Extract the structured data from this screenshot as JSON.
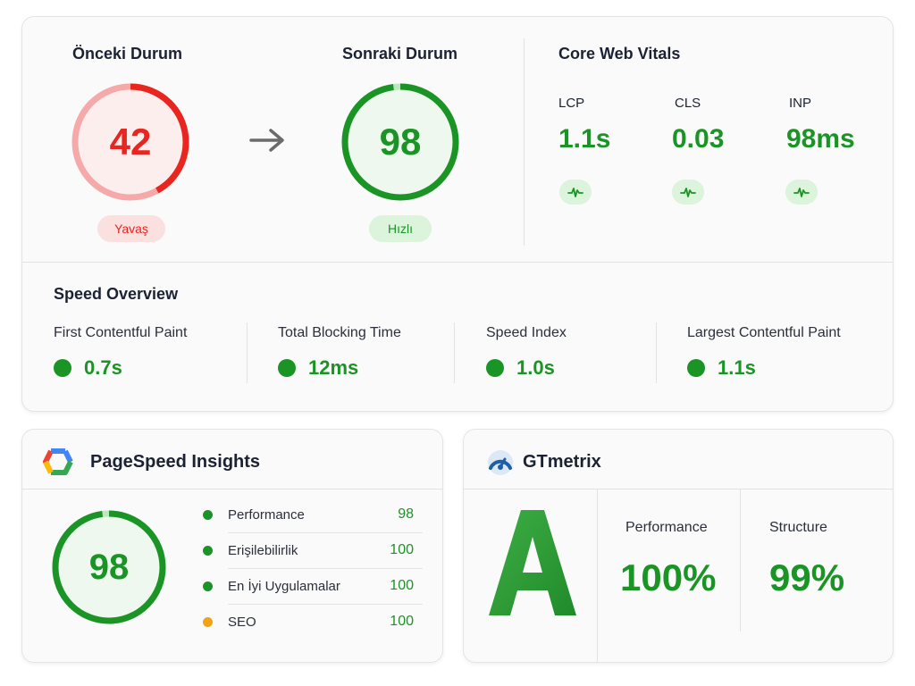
{
  "comparison": {
    "before": {
      "title": "Önceki Durum",
      "score": "42",
      "score_fraction": 0.42,
      "status": "Yavaş",
      "color": "#e8251f",
      "track_color": "#f5a9a9",
      "fill_color": "#fdeeee",
      "pill_bg": "#fbe0e0"
    },
    "after": {
      "title": "Sonraki Durum",
      "score": "98",
      "score_fraction": 0.98,
      "status": "Hızlı",
      "color": "#1a9424",
      "fill_color": "#eef8ee",
      "pill_bg": "#dcf3dc"
    },
    "arrow_icon": "arrow-right-icon"
  },
  "core_web_vitals": {
    "title": "Core Web Vitals",
    "metrics": [
      {
        "label": "LCP",
        "value": "1.1s",
        "icon": "pulse-icon"
      },
      {
        "label": "CLS",
        "value": "0.03",
        "icon": "pulse-icon"
      },
      {
        "label": "INP",
        "value": "98ms",
        "icon": "pulse-icon"
      }
    ]
  },
  "speed_overview": {
    "title": "Speed Overview",
    "metrics": [
      {
        "label": "First Contentful Paint",
        "value": "0.7s"
      },
      {
        "label": "Total Blocking Time",
        "value": "12ms"
      },
      {
        "label": "Speed Index",
        "value": "1.0s"
      },
      {
        "label": "Largest Contentful Paint",
        "value": "1.1s"
      }
    ]
  },
  "pagespeed": {
    "title": "PageSpeed Insights",
    "logo_icon": "pagespeed-logo-icon",
    "score": "98",
    "score_fraction": 0.98,
    "rows": [
      {
        "name": "Performance",
        "score": "98",
        "dot_color": "#1a9424"
      },
      {
        "name": "Erişilebilirlik",
        "score": "100",
        "dot_color": "#1a9424"
      },
      {
        "name": "En İyi Uygulamalar",
        "score": "100",
        "dot_color": "#1a9424"
      },
      {
        "name": "SEO",
        "score": "100",
        "dot_color": "#f2a30f"
      }
    ]
  },
  "gtmetrix": {
    "title": "GTmetrix",
    "logo_icon": "gtmetrix-logo-icon",
    "grade": "A",
    "performance_label": "Performance",
    "performance_value": "100%",
    "structure_label": "Structure",
    "structure_value": "99%"
  },
  "colors": {
    "good": "#1a9424",
    "bad": "#e8251f",
    "warning": "#f2a30f"
  }
}
